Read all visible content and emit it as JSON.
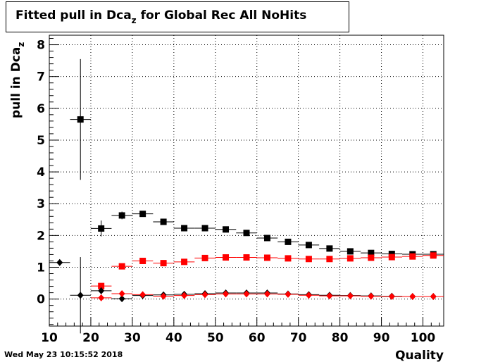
{
  "title": {
    "main": "Fitted pull in Dca",
    "sub": "z",
    "suffix": " for Global Rec All NoHits"
  },
  "timestamp": "Wed May 23 10:15:52 2018",
  "chart_data": {
    "type": "scatter",
    "title": "Fitted pull in Dca_z for Global Rec All NoHits",
    "xlabel": "Quality",
    "ylabel": {
      "main": "pull in Dca",
      "sub": "z"
    },
    "xlim": [
      10,
      105
    ],
    "ylim": [
      -0.85,
      8.3
    ],
    "grid": true,
    "x_ticks": [
      10,
      20,
      30,
      40,
      50,
      60,
      70,
      80,
      90,
      100
    ],
    "y_ticks": [
      0,
      1,
      2,
      3,
      4,
      5,
      6,
      7,
      8
    ],
    "series": [
      {
        "marker": "square",
        "color": "#000000",
        "points": [
          {
            "x": 17.5,
            "y": 5.65,
            "err": 1.9
          },
          {
            "x": 22.5,
            "y": 2.22,
            "err": 0.25
          },
          {
            "x": 27.5,
            "y": 2.63,
            "err": 0.12
          },
          {
            "x": 32.5,
            "y": 2.68,
            "err": 0.06
          },
          {
            "x": 37.5,
            "y": 2.43,
            "err": 0.04
          },
          {
            "x": 42.5,
            "y": 2.23,
            "err": 0.03
          },
          {
            "x": 47.5,
            "y": 2.23,
            "err": 0.03
          },
          {
            "x": 52.5,
            "y": 2.19,
            "err": 0.02
          },
          {
            "x": 57.5,
            "y": 2.08,
            "err": 0.02
          },
          {
            "x": 62.5,
            "y": 1.92,
            "err": 0.02
          },
          {
            "x": 67.5,
            "y": 1.8,
            "err": 0.02
          },
          {
            "x": 72.5,
            "y": 1.7,
            "err": 0.02
          },
          {
            "x": 77.5,
            "y": 1.59,
            "err": 0.02
          },
          {
            "x": 82.5,
            "y": 1.5,
            "err": 0.02
          },
          {
            "x": 87.5,
            "y": 1.45,
            "err": 0.02
          },
          {
            "x": 92.5,
            "y": 1.42,
            "err": 0.02
          },
          {
            "x": 97.5,
            "y": 1.41,
            "err": 0.02
          },
          {
            "x": 102.5,
            "y": 1.41,
            "err": 0.02
          }
        ]
      },
      {
        "marker": "square",
        "color": "#ff0000",
        "points": [
          {
            "x": 22.5,
            "y": 0.41,
            "err": 0.03
          },
          {
            "x": 27.5,
            "y": 1.03,
            "err": 0.08
          },
          {
            "x": 32.5,
            "y": 1.2,
            "err": 0.04
          },
          {
            "x": 37.5,
            "y": 1.13,
            "err": 0.03
          },
          {
            "x": 42.5,
            "y": 1.17,
            "err": 0.03
          },
          {
            "x": 47.5,
            "y": 1.29,
            "err": 0.02
          },
          {
            "x": 52.5,
            "y": 1.31,
            "err": 0.02
          },
          {
            "x": 57.5,
            "y": 1.31,
            "err": 0.02
          },
          {
            "x": 62.5,
            "y": 1.3,
            "err": 0.02
          },
          {
            "x": 67.5,
            "y": 1.28,
            "err": 0.02
          },
          {
            "x": 72.5,
            "y": 1.26,
            "err": 0.02
          },
          {
            "x": 77.5,
            "y": 1.26,
            "err": 0.02
          },
          {
            "x": 82.5,
            "y": 1.28,
            "err": 0.02
          },
          {
            "x": 87.5,
            "y": 1.3,
            "err": 0.02
          },
          {
            "x": 92.5,
            "y": 1.32,
            "err": 0.02
          },
          {
            "x": 97.5,
            "y": 1.34,
            "err": 0.02
          },
          {
            "x": 102.5,
            "y": 1.37,
            "err": 0.02
          }
        ]
      },
      {
        "marker": "diamond",
        "color": "#000000",
        "points": [
          {
            "x": 12.5,
            "y": 1.15,
            "err": 0.0
          },
          {
            "x": 17.5,
            "y": 0.12,
            "err": 1.2
          },
          {
            "x": 22.5,
            "y": 0.26,
            "err": 0.1
          },
          {
            "x": 27.5,
            "y": 0.01,
            "err": 0.05
          },
          {
            "x": 32.5,
            "y": 0.11,
            "err": 0.03
          },
          {
            "x": 37.5,
            "y": 0.13,
            "err": 0.02
          },
          {
            "x": 42.5,
            "y": 0.15,
            "err": 0.02
          },
          {
            "x": 47.5,
            "y": 0.17,
            "err": 0.02
          },
          {
            "x": 52.5,
            "y": 0.19,
            "err": 0.02
          },
          {
            "x": 57.5,
            "y": 0.19,
            "err": 0.02
          },
          {
            "x": 62.5,
            "y": 0.19,
            "err": 0.02
          },
          {
            "x": 67.5,
            "y": 0.16,
            "err": 0.02
          },
          {
            "x": 72.5,
            "y": 0.14,
            "err": 0.02
          },
          {
            "x": 77.5,
            "y": 0.12,
            "err": 0.02
          },
          {
            "x": 82.5,
            "y": 0.11,
            "err": 0.02
          },
          {
            "x": 87.5,
            "y": 0.1,
            "err": 0.02
          },
          {
            "x": 92.5,
            "y": 0.09,
            "err": 0.02
          },
          {
            "x": 97.5,
            "y": 0.08,
            "err": 0.02
          },
          {
            "x": 102.5,
            "y": 0.08,
            "err": 0.02
          }
        ]
      },
      {
        "marker": "diamond",
        "color": "#ff0000",
        "points": [
          {
            "x": 22.5,
            "y": 0.04,
            "err": 0.02
          },
          {
            "x": 27.5,
            "y": 0.17,
            "err": 0.03
          },
          {
            "x": 32.5,
            "y": 0.14,
            "err": 0.02
          },
          {
            "x": 37.5,
            "y": 0.09,
            "err": 0.02
          },
          {
            "x": 42.5,
            "y": 0.11,
            "err": 0.02
          },
          {
            "x": 47.5,
            "y": 0.14,
            "err": 0.02
          },
          {
            "x": 52.5,
            "y": 0.16,
            "err": 0.02
          },
          {
            "x": 57.5,
            "y": 0.16,
            "err": 0.02
          },
          {
            "x": 62.5,
            "y": 0.16,
            "err": 0.02
          },
          {
            "x": 67.5,
            "y": 0.15,
            "err": 0.02
          },
          {
            "x": 72.5,
            "y": 0.12,
            "err": 0.02
          },
          {
            "x": 77.5,
            "y": 0.1,
            "err": 0.02
          },
          {
            "x": 82.5,
            "y": 0.1,
            "err": 0.02
          },
          {
            "x": 87.5,
            "y": 0.09,
            "err": 0.02
          },
          {
            "x": 92.5,
            "y": 0.08,
            "err": 0.02
          },
          {
            "x": 97.5,
            "y": 0.08,
            "err": 0.02
          },
          {
            "x": 102.5,
            "y": 0.08,
            "err": 0.02
          }
        ]
      }
    ]
  }
}
